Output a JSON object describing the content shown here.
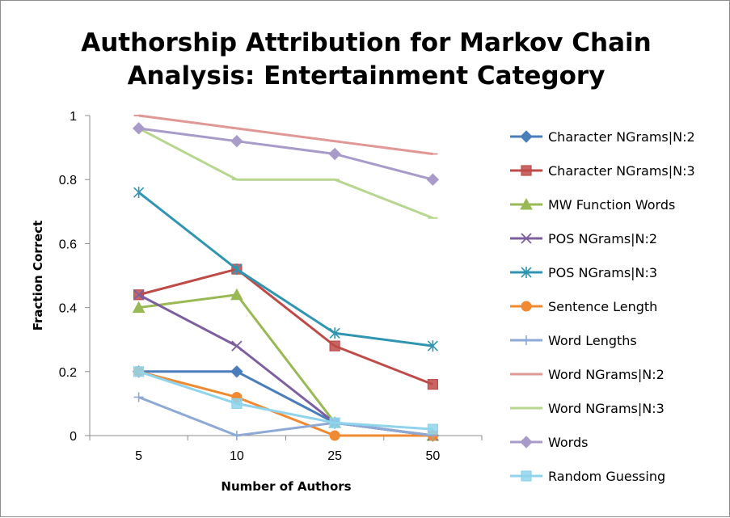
{
  "chart_data": {
    "type": "line",
    "title": [
      "Authorship Attribution for Markov Chain",
      "Analysis: Entertainment Category"
    ],
    "xlabel": "Number of Authors",
    "ylabel": "Fraction Correct",
    "categories": [
      "5",
      "10",
      "25",
      "50"
    ],
    "ylim": [
      0,
      1
    ],
    "yticks": [
      0,
      0.2,
      0.4,
      0.6,
      0.8,
      1
    ],
    "ytick_labels": [
      "0",
      "0.2",
      "0.4",
      "0.6",
      "0.8",
      "1"
    ],
    "grid": "none",
    "legend_position": "right",
    "series": [
      {
        "name": "Character NGrams|N:2",
        "color": "#4a7ebb",
        "marker": "diamond",
        "values": [
          0.2,
          0.2,
          0.04,
          0.0
        ]
      },
      {
        "name": "Character NGrams|N:3",
        "color": "#be4b48",
        "marker": "square",
        "values": [
          0.44,
          0.52,
          0.28,
          0.16
        ]
      },
      {
        "name": "MW Function Words",
        "color": "#98b954",
        "marker": "triangle",
        "values": [
          0.4,
          0.44,
          0.04,
          0.0
        ]
      },
      {
        "name": "POS NGrams|N:2",
        "color": "#7d5fa0",
        "marker": "x",
        "values": [
          0.44,
          0.28,
          0.04,
          0.0
        ]
      },
      {
        "name": "POS NGrams|N:3",
        "color": "#2f95b0",
        "marker": "star",
        "values": [
          0.76,
          0.52,
          0.32,
          0.28
        ]
      },
      {
        "name": "Sentence Length",
        "color": "#f08a32",
        "marker": "circle",
        "values": [
          0.2,
          0.12,
          0.0,
          0.0
        ]
      },
      {
        "name": "Word Lengths",
        "color": "#8ea9d6",
        "marker": "plus",
        "values": [
          0.12,
          0.0,
          0.04,
          0.0
        ]
      },
      {
        "name": "Word NGrams|N:2",
        "color": "#e09896",
        "marker": "dash",
        "values": [
          1.0,
          0.96,
          0.92,
          0.88
        ]
      },
      {
        "name": "Word NGrams|N:3",
        "color": "#b7d68f",
        "marker": "dash",
        "values": [
          0.96,
          0.8,
          0.8,
          0.68
        ]
      },
      {
        "name": "Words",
        "color": "#a89bc9",
        "marker": "diamond",
        "values": [
          0.96,
          0.92,
          0.88,
          0.8
        ]
      },
      {
        "name": "Random Guessing",
        "color": "#8fd3ec",
        "marker": "square",
        "values": [
          0.2,
          0.1,
          0.04,
          0.02
        ]
      }
    ]
  }
}
